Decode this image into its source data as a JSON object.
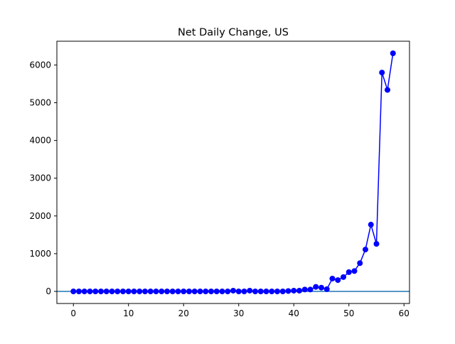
{
  "chart_data": {
    "type": "line",
    "title": "Net Daily Change, US",
    "xlabel": "",
    "ylabel": "",
    "xlim": [
      -3,
      61
    ],
    "ylim": [
      -320,
      6630
    ],
    "xticks": [
      0,
      10,
      20,
      30,
      40,
      50,
      60
    ],
    "yticks": [
      0,
      1000,
      2000,
      3000,
      4000,
      5000,
      6000
    ],
    "grid": false,
    "legend": "none",
    "reference_line": {
      "y": 0,
      "color": "#1f77b4"
    },
    "series": [
      {
        "color": "#0000ff",
        "marker": "circle",
        "x": [
          0,
          1,
          2,
          3,
          4,
          5,
          6,
          7,
          8,
          9,
          10,
          11,
          12,
          13,
          14,
          15,
          16,
          17,
          18,
          19,
          20,
          21,
          22,
          23,
          24,
          25,
          26,
          27,
          28,
          29,
          30,
          31,
          32,
          33,
          34,
          35,
          36,
          37,
          38,
          39,
          40,
          41,
          42,
          43,
          44,
          45,
          46,
          47,
          48,
          49,
          50,
          51,
          52,
          53,
          54,
          55,
          56,
          57,
          58
        ],
        "y": [
          0,
          0,
          0,
          0,
          0,
          0,
          0,
          0,
          0,
          0,
          0,
          0,
          0,
          0,
          0,
          0,
          0,
          0,
          0,
          0,
          0,
          0,
          0,
          0,
          0,
          0,
          0,
          0,
          0,
          20,
          0,
          0,
          20,
          0,
          0,
          0,
          0,
          0,
          0,
          10,
          20,
          20,
          50,
          50,
          120,
          100,
          60,
          340,
          300,
          380,
          510,
          540,
          750,
          1110,
          1770,
          1260,
          5800,
          5340,
          6310
        ]
      }
    ]
  }
}
